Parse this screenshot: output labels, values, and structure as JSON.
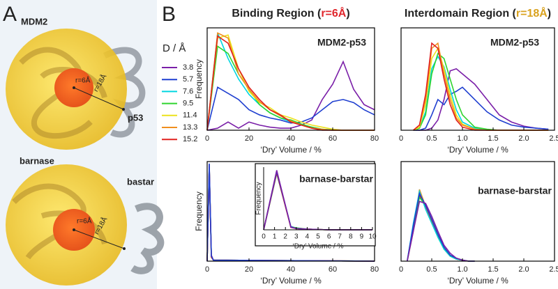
{
  "panel_labels": [
    "A",
    "B"
  ],
  "panel_a": {
    "top": {
      "protein": "MDM2",
      "partner": "p53",
      "inner_radius": "r=6Å",
      "outer_radius": "r=18Å"
    },
    "bottom": {
      "protein": "barnase",
      "partner": "bastar",
      "inner_radius": "r=6Å",
      "outer_radius": "r=18Å"
    }
  },
  "column_titles": [
    {
      "text": "Binding Region (",
      "highlight": "r=6Å",
      "end": ")",
      "highlight_color": "#e0262c"
    },
    {
      "text": "Interdomain Region (",
      "highlight": "r=18Å",
      "end": ")",
      "highlight_color": "#d9a21e"
    }
  ],
  "chart_data": [
    {
      "type": "line",
      "title": "MDM2-p53",
      "xlabel": "‘Dry’ Volume / %",
      "ylabel": "Frequency",
      "legend_title": "D / Å",
      "x": [
        0,
        5,
        10,
        15,
        20,
        25,
        30,
        35,
        40,
        45,
        50,
        55,
        60,
        65,
        70,
        75,
        80
      ],
      "xlim": [
        0,
        80
      ],
      "ylim": [
        0,
        1
      ],
      "xticks": [
        0,
        20,
        40,
        60,
        80
      ],
      "series": [
        {
          "name": "3.8",
          "color": "#7a1fa8",
          "values": [
            0,
            0.02,
            0.08,
            0.02,
            0.08,
            0.05,
            0.03,
            0.02,
            0.02,
            0.05,
            0.1,
            0.3,
            0.45,
            0.67,
            0.4,
            0.25,
            0.2
          ]
        },
        {
          "name": "5.7",
          "color": "#1f3fd0",
          "values": [
            0,
            0.42,
            0.36,
            0.3,
            0.2,
            0.15,
            0.12,
            0.1,
            0.07,
            0.08,
            0.12,
            0.2,
            0.28,
            0.3,
            0.27,
            0.2,
            0.15
          ]
        },
        {
          "name": "7.6",
          "color": "#00d6e0",
          "values": [
            0,
            0.95,
            0.7,
            0.5,
            0.35,
            0.25,
            0.17,
            0.12,
            0.08,
            0.05,
            0.03,
            0.01,
            0.005,
            0,
            0,
            0,
            0
          ]
        },
        {
          "name": "9.5",
          "color": "#2ed42e",
          "values": [
            0,
            0.82,
            0.75,
            0.55,
            0.4,
            0.25,
            0.17,
            0.12,
            0.1,
            0.06,
            0.03,
            0.01,
            0,
            0,
            0,
            0,
            0
          ]
        },
        {
          "name": "11.4",
          "color": "#ece21c",
          "values": [
            0,
            0.9,
            0.93,
            0.6,
            0.38,
            0.27,
            0.22,
            0.15,
            0.12,
            0.08,
            0.05,
            0.03,
            0.01,
            0,
            0,
            0,
            0
          ]
        },
        {
          "name": "13.3",
          "color": "#f08f1e",
          "values": [
            0,
            0.95,
            0.9,
            0.55,
            0.4,
            0.28,
            0.2,
            0.14,
            0.09,
            0.05,
            0.02,
            0.01,
            0,
            0,
            0,
            0,
            0
          ]
        },
        {
          "name": "15.2",
          "color": "#e0201e",
          "values": [
            0,
            0.92,
            0.85,
            0.6,
            0.42,
            0.3,
            0.2,
            0.15,
            0.08,
            0.05,
            0.02,
            0,
            0,
            0,
            0,
            0,
            0
          ]
        }
      ]
    },
    {
      "type": "line",
      "title": "MDM2-p53",
      "xlabel": "‘Dry’ Volume / %",
      "x": [
        0.2,
        0.3,
        0.4,
        0.5,
        0.6,
        0.7,
        0.8,
        0.9,
        1.0,
        1.2,
        1.4,
        1.6,
        1.8,
        2.0,
        2.2,
        2.4
      ],
      "xlim": [
        0,
        2.5
      ],
      "ylim": [
        0,
        1
      ],
      "xticks": [
        0,
        0.5,
        {
          "value": 1,
          "label": "1.0"
        },
        1.5,
        {
          "value": 2,
          "label": "2.0"
        },
        2.5
      ],
      "series": [
        {
          "color": "#7a1fa8",
          "values": [
            0,
            0,
            0,
            0.02,
            0.1,
            0.3,
            0.58,
            0.6,
            0.55,
            0.45,
            0.3,
            0.15,
            0.08,
            0.04,
            0.02,
            0.01
          ]
        },
        {
          "color": "#1f3fd0",
          "values": [
            0,
            0,
            0.02,
            0.15,
            0.3,
            0.25,
            0.35,
            0.38,
            0.42,
            0.3,
            0.18,
            0.1,
            0.05,
            0.03,
            0.02,
            0.01
          ]
        },
        {
          "color": "#00d6e0",
          "values": [
            0,
            0.02,
            0.18,
            0.6,
            0.72,
            0.62,
            0.4,
            0.2,
            0.08,
            0.02,
            0,
            0,
            0,
            0,
            0,
            0
          ]
        },
        {
          "color": "#2ed42e",
          "values": [
            0,
            0.02,
            0.15,
            0.55,
            0.75,
            0.7,
            0.5,
            0.3,
            0.15,
            0.03,
            0.01,
            0,
            0,
            0,
            0,
            0
          ]
        },
        {
          "color": "#ece21c",
          "values": [
            0,
            0.03,
            0.25,
            0.7,
            0.8,
            0.6,
            0.35,
            0.15,
            0.06,
            0.01,
            0,
            0,
            0,
            0,
            0,
            0
          ]
        },
        {
          "color": "#f08f1e",
          "values": [
            0,
            0.05,
            0.3,
            0.8,
            0.85,
            0.55,
            0.3,
            0.12,
            0.05,
            0.01,
            0,
            0,
            0,
            0,
            0,
            0
          ]
        },
        {
          "color": "#e0201e",
          "values": [
            0,
            0.05,
            0.35,
            0.85,
            0.8,
            0.5,
            0.25,
            0.1,
            0.03,
            0,
            0,
            0,
            0,
            0,
            0,
            0
          ]
        }
      ]
    },
    {
      "type": "line",
      "xlabel": "‘Dry’ Volume / %",
      "ylabel": "Frequency",
      "x": [
        0,
        1,
        2,
        3,
        80
      ],
      "xlim": [
        0,
        80
      ],
      "ylim": [
        0,
        1
      ],
      "xticks": [
        0,
        20,
        40,
        60,
        80
      ],
      "series": [
        {
          "color": "#00d6e0",
          "values": [
            0,
            0.96,
            0.05,
            0.01,
            0
          ]
        },
        {
          "color": "#2ed42e",
          "values": [
            0,
            0.95,
            0.05,
            0.01,
            0
          ]
        },
        {
          "color": "#ece21c",
          "values": [
            0,
            0.97,
            0.04,
            0.01,
            0
          ]
        },
        {
          "color": "#f08f1e",
          "values": [
            0,
            0.96,
            0.04,
            0.01,
            0
          ]
        },
        {
          "color": "#e0201e",
          "values": [
            0,
            0.95,
            0.04,
            0.01,
            0
          ]
        },
        {
          "color": "#7a1fa8",
          "values": [
            0,
            0.97,
            0.06,
            0.01,
            0
          ]
        },
        {
          "color": "#1f3fd0",
          "values": [
            0,
            0.98,
            0.05,
            0.01,
            0
          ]
        }
      ]
    },
    {
      "type": "line",
      "title": "barnase-barstar",
      "xlabel": "‘Dry’ Volume / %",
      "ylabel": "Frequency",
      "x": [
        0,
        1.2,
        2.5,
        3,
        4,
        6,
        8,
        10
      ],
      "xlim": [
        0,
        10
      ],
      "ylim": [
        0,
        1
      ],
      "xticks": [
        0,
        1,
        2,
        3,
        4,
        5,
        6,
        7,
        8,
        9,
        10
      ],
      "series": [
        {
          "color": "#00d6e0",
          "values": [
            0,
            0.9,
            0.05,
            0.03,
            0.01,
            0,
            0,
            0
          ]
        },
        {
          "color": "#2ed42e",
          "values": [
            0,
            0.9,
            0.05,
            0.03,
            0.01,
            0,
            0,
            0
          ]
        },
        {
          "color": "#ece21c",
          "values": [
            0,
            0.92,
            0.04,
            0.02,
            0.01,
            0,
            0,
            0
          ]
        },
        {
          "color": "#f08f1e",
          "values": [
            0,
            0.92,
            0.04,
            0.02,
            0.01,
            0,
            0,
            0
          ]
        },
        {
          "color": "#e0201e",
          "values": [
            0,
            0.91,
            0.04,
            0.02,
            0.01,
            0,
            0,
            0
          ]
        },
        {
          "color": "#1f3fd0",
          "values": [
            0,
            0.93,
            0.05,
            0.02,
            0.01,
            0,
            0,
            0
          ]
        },
        {
          "color": "#7a1fa8",
          "values": [
            0,
            0.95,
            0.04,
            0.02,
            0.01,
            0,
            0,
            0
          ]
        }
      ]
    },
    {
      "type": "line",
      "title": "barnase-barstar",
      "xlabel": "‘Dry’ Volume / %",
      "x": [
        0.1,
        0.2,
        0.3,
        0.4,
        0.5,
        0.6,
        0.7,
        0.8,
        0.9,
        1.0,
        1.1,
        1.2
      ],
      "xlim": [
        0,
        2.5
      ],
      "ylim": [
        0,
        1
      ],
      "xticks": [
        0,
        0.5,
        {
          "value": 1,
          "label": "1.0"
        },
        1.5,
        {
          "value": 2,
          "label": "2.0"
        },
        2.5
      ],
      "series": [
        {
          "color": "#ece21c",
          "values": [
            0,
            0.35,
            0.68,
            0.55,
            0.4,
            0.24,
            0.12,
            0.05,
            0.02,
            0.01,
            0,
            0
          ]
        },
        {
          "color": "#f08f1e",
          "values": [
            0,
            0.3,
            0.72,
            0.55,
            0.4,
            0.25,
            0.12,
            0.05,
            0.02,
            0.01,
            0,
            0
          ]
        },
        {
          "color": "#e0201e",
          "values": [
            0,
            0.32,
            0.66,
            0.55,
            0.41,
            0.26,
            0.13,
            0.06,
            0.02,
            0.01,
            0,
            0
          ]
        },
        {
          "color": "#00d6e0",
          "values": [
            0,
            0.38,
            0.7,
            0.52,
            0.38,
            0.24,
            0.12,
            0.05,
            0.02,
            0.01,
            0,
            0
          ]
        },
        {
          "color": "#2ed42e",
          "values": [
            0,
            0.33,
            0.64,
            0.56,
            0.42,
            0.27,
            0.14,
            0.06,
            0.03,
            0.01,
            0,
            0
          ]
        },
        {
          "color": "#1f3fd0",
          "values": [
            0,
            0.36,
            0.68,
            0.56,
            0.42,
            0.27,
            0.14,
            0.06,
            0.03,
            0.01,
            0,
            0
          ]
        },
        {
          "color": "#7a1fa8",
          "values": [
            0,
            0.3,
            0.6,
            0.58,
            0.45,
            0.3,
            0.16,
            0.08,
            0.03,
            0.01,
            0,
            0
          ]
        }
      ]
    }
  ]
}
